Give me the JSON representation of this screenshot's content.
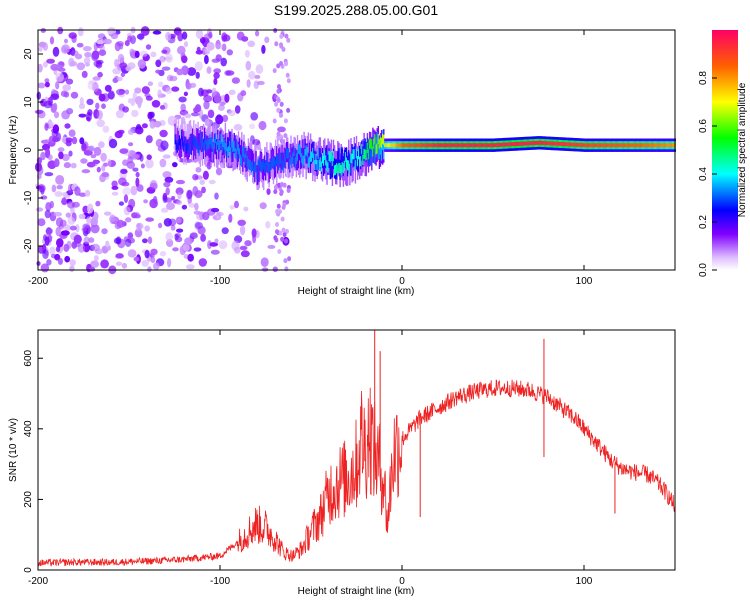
{
  "title": "S199.2025.288.05.00.G01",
  "chart_data": [
    {
      "type": "heatmap",
      "title": "S199.2025.288.05.00.G01",
      "xlabel": "Height of straight line (km)",
      "ylabel": "Frequency (Hz)",
      "xlim": [
        -200,
        150
      ],
      "ylim": [
        -25,
        25
      ],
      "x_ticks": [
        -200,
        -100,
        0,
        100
      ],
      "y_ticks": [
        -20,
        -10,
        0,
        10,
        20
      ],
      "colorbar": {
        "label": "Normalized spectral amplitude",
        "range": [
          0,
          1
        ],
        "ticks": [
          0.0,
          0.2,
          0.4,
          0.6,
          0.8
        ],
        "colormap": "rainbow (white-purple-blue-cyan-green-yellow-red)"
      },
      "signal_track": [
        {
          "x": -125,
          "freq": 2,
          "amp": 0.25
        },
        {
          "x": -110,
          "freq": 1,
          "amp": 0.3
        },
        {
          "x": -95,
          "freq": 1,
          "amp": 0.35
        },
        {
          "x": -80,
          "freq": -4,
          "amp": 0.3
        },
        {
          "x": -65,
          "freq": -2,
          "amp": 0.3
        },
        {
          "x": -55,
          "freq": -1,
          "amp": 0.35
        },
        {
          "x": -45,
          "freq": -2,
          "amp": 0.4
        },
        {
          "x": -35,
          "freq": -3,
          "amp": 0.45
        },
        {
          "x": -25,
          "freq": -2,
          "amp": 0.4
        },
        {
          "x": -15,
          "freq": 1,
          "amp": 0.6
        },
        {
          "x": -5,
          "freq": 1,
          "amp": 0.75
        },
        {
          "x": 0,
          "freq": 1,
          "amp": 0.85
        },
        {
          "x": 20,
          "freq": 1,
          "amp": 0.95
        },
        {
          "x": 50,
          "freq": 1,
          "amp": 0.95
        },
        {
          "x": 75,
          "freq": 1.5,
          "amp": 0.95
        },
        {
          "x": 100,
          "freq": 1,
          "amp": 0.9
        },
        {
          "x": 130,
          "freq": 1,
          "amp": 0.85
        },
        {
          "x": 150,
          "freq": 1,
          "amp": 0.8
        }
      ],
      "noise_region": {
        "x_from": -200,
        "x_to": -60,
        "amp": 0.15
      }
    },
    {
      "type": "line",
      "xlabel": "Height of straight line (km)",
      "ylabel": "SNR (10 * v/v)",
      "xlim": [
        -200,
        150
      ],
      "ylim": [
        0,
        680
      ],
      "x_ticks": [
        -200,
        -100,
        0,
        100
      ],
      "y_ticks": [
        0,
        200,
        400,
        600
      ],
      "color": "#ee2222",
      "series": [
        {
          "x": [
            -200,
            -180,
            -160,
            -140,
            -120,
            -100,
            -90,
            -80,
            -75,
            -70,
            -65,
            -60,
            -55,
            -50,
            -45,
            -40,
            -35,
            -30,
            -25,
            -22,
            -20,
            -18,
            -15,
            -12,
            -10,
            -8,
            -5,
            -2,
            0,
            5,
            10,
            20,
            30,
            40,
            50,
            60,
            70,
            75,
            80,
            85,
            90,
            95,
            100,
            105,
            110,
            115,
            120,
            125,
            130,
            135,
            140,
            145,
            150
          ],
          "y": [
            20,
            22,
            22,
            25,
            30,
            40,
            80,
            130,
            120,
            90,
            50,
            40,
            60,
            110,
            150,
            220,
            250,
            260,
            300,
            380,
            340,
            400,
            330,
            290,
            260,
            130,
            320,
            360,
            370,
            400,
            430,
            460,
            490,
            505,
            515,
            515,
            510,
            500,
            490,
            470,
            450,
            430,
            400,
            370,
            340,
            310,
            290,
            280,
            275,
            270,
            250,
            220,
            180
          ]
        }
      ],
      "spikes": [
        {
          "x": -15,
          "y": 680
        },
        {
          "x": -12,
          "y": 620
        },
        {
          "x": -22,
          "y": 460
        },
        {
          "x": 78,
          "y": 655
        },
        {
          "x": 78,
          "y": 320
        },
        {
          "x": 117,
          "y": 160
        },
        {
          "x": 10,
          "y": 150
        }
      ]
    }
  ]
}
